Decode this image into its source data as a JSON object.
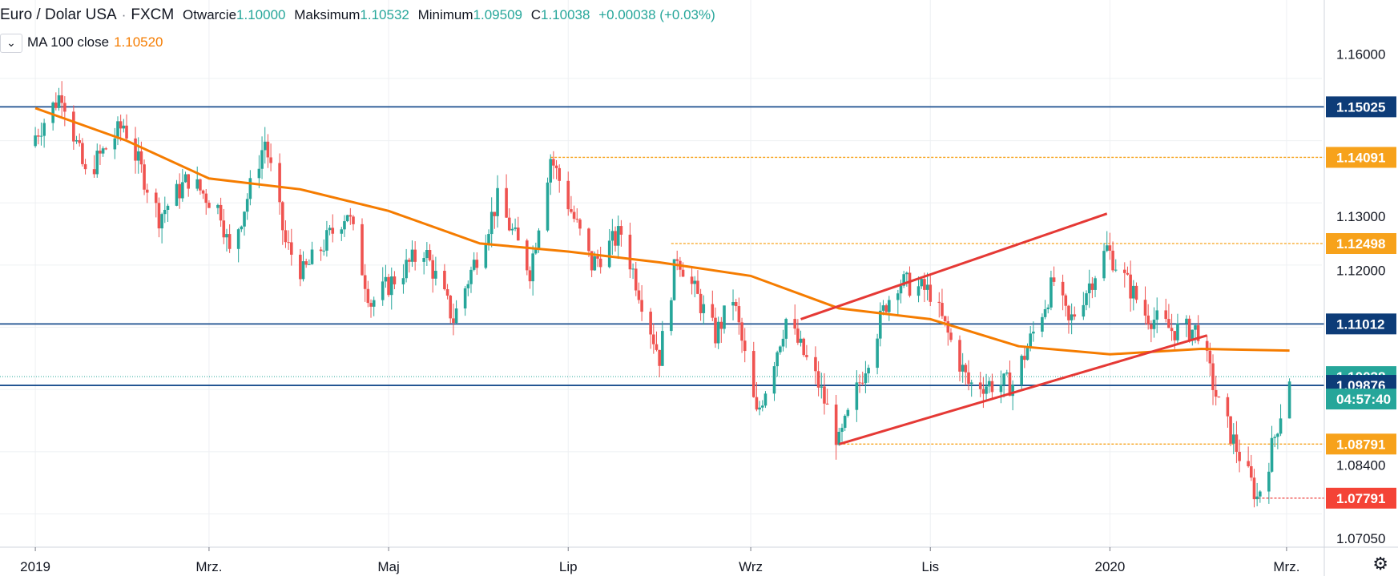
{
  "legend": {
    "symbol": "Euro / Dolar USA",
    "sep": "·",
    "exchange": "FXCM",
    "open_label": "Otwarcie",
    "open": "1.10000",
    "high_label": "Maksimum",
    "high": "1.10532",
    "low_label": "Minimum",
    "low": "1.09509",
    "close_label": "C",
    "close": "1.10038",
    "change": "+0.00038 (+0.03%)",
    "ma_toggle": "⌄",
    "ma_name": "MA 100 close",
    "ma_value": "1.10520"
  },
  "countdown": "04:57:40",
  "settings_icon": "gear-icon",
  "colors": {
    "up": "#26a69a",
    "down": "#ef5350",
    "ma": "#f57c00",
    "hline": "#1b4f8f",
    "trend": "#e53935",
    "level": "#f7a21b",
    "grid": "#eef0f3"
  },
  "chart_data": {
    "type": "candlestick",
    "symbol": "EUR/USD",
    "period": "2019-01 to 2020-03, daily",
    "x_ticks": [
      "2019",
      "Mrz.",
      "Maj",
      "Lip",
      "Wrz",
      "Lis",
      "2020",
      "Mrz."
    ],
    "x_tick_dates": [
      "2019-01-01",
      "2019-03-01",
      "2019-05-01",
      "2019-07-01",
      "2019-09-01",
      "2019-11-01",
      "2020-01-01",
      "2020-03-01"
    ],
    "y_ticks": [
      "1.16000",
      "1.13000",
      "1.12000",
      "1.08400",
      "1.07050"
    ],
    "y_tick_values": [
      1.16,
      1.13,
      1.12,
      1.084,
      1.0705
    ],
    "y_range": [
      1.069,
      1.17
    ],
    "x_range": [
      "2018-12-20",
      "2020-03-13"
    ],
    "price_labels": [
      {
        "text": "1.15025",
        "value": 1.15025,
        "kind": "hline"
      },
      {
        "text": "1.14091",
        "value": 1.14091,
        "kind": "level"
      },
      {
        "text": "1.12498",
        "value": 1.12498,
        "kind": "level"
      },
      {
        "text": "1.11012",
        "value": 1.11012,
        "kind": "hline"
      },
      {
        "text": "1.10038",
        "value": 1.10038,
        "kind": "last"
      },
      {
        "text": "1.09876",
        "value": 1.09876,
        "kind": "hline"
      },
      {
        "text": "1.08791",
        "value": 1.08791,
        "kind": "level"
      },
      {
        "text": "1.07791",
        "value": 1.07791,
        "kind": "low"
      }
    ],
    "horizontal_lines": [
      1.15025,
      1.11012,
      1.09876
    ],
    "level_lines": [
      {
        "value": 1.14091,
        "from": "2019-06-25"
      },
      {
        "value": 1.12498,
        "from": "2019-08-05"
      },
      {
        "value": 1.08791,
        "from": "2019-10-01"
      },
      {
        "value": 1.07791,
        "from": "2020-02-19"
      }
    ],
    "trend_lines": [
      {
        "from": [
          "2019-09-18",
          1.111
        ],
        "to": [
          "2019-12-31",
          1.1305
        ]
      },
      {
        "from": [
          "2019-10-01",
          1.0879
        ],
        "to": [
          "2020-02-03",
          1.108
        ]
      }
    ],
    "price_path": [
      [
        "2019-01-01",
        1.145
      ],
      [
        "2019-01-10",
        1.153
      ],
      [
        "2019-01-18",
        1.1375
      ],
      [
        "2019-01-31",
        1.147
      ],
      [
        "2019-02-12",
        1.13
      ],
      [
        "2019-02-22",
        1.137
      ],
      [
        "2019-03-05",
        1.131
      ],
      [
        "2019-03-08",
        1.123
      ],
      [
        "2019-03-20",
        1.144
      ],
      [
        "2019-03-27",
        1.125
      ],
      [
        "2019-04-02",
        1.1195
      ],
      [
        "2019-04-17",
        1.131
      ],
      [
        "2019-04-25",
        1.114
      ],
      [
        "2019-05-13",
        1.124
      ],
      [
        "2019-05-23",
        1.111
      ],
      [
        "2019-06-07",
        1.133
      ],
      [
        "2019-06-18",
        1.12
      ],
      [
        "2019-06-25",
        1.141
      ],
      [
        "2019-07-09",
        1.121
      ],
      [
        "2019-07-19",
        1.127
      ],
      [
        "2019-08-01",
        1.104
      ],
      [
        "2019-08-07",
        1.123
      ],
      [
        "2019-08-20",
        1.108
      ],
      [
        "2019-08-26",
        1.115
      ],
      [
        "2019-09-03",
        1.093
      ],
      [
        "2019-09-13",
        1.111
      ],
      [
        "2019-09-24",
        1.099
      ],
      [
        "2019-10-01",
        1.088
      ],
      [
        "2019-10-17",
        1.114
      ],
      [
        "2019-10-21",
        1.118
      ],
      [
        "2019-11-01",
        1.116
      ],
      [
        "2019-11-14",
        1.099
      ],
      [
        "2019-11-29",
        1.099
      ],
      [
        "2019-12-13",
        1.118
      ],
      [
        "2019-12-18",
        1.11
      ],
      [
        "2019-12-31",
        1.124
      ],
      [
        "2020-01-13",
        1.112
      ],
      [
        "2020-01-22",
        1.109
      ],
      [
        "2020-01-31",
        1.109
      ],
      [
        "2020-02-07",
        1.095
      ],
      [
        "2020-02-20",
        1.078
      ],
      [
        "2020-02-24",
        1.085
      ],
      [
        "2020-03-02",
        1.1004
      ]
    ],
    "ma100_path": [
      [
        "2019-01-01",
        1.15
      ],
      [
        "2019-02-01",
        1.144
      ],
      [
        "2019-03-01",
        1.137
      ],
      [
        "2019-04-01",
        1.135
      ],
      [
        "2019-05-01",
        1.131
      ],
      [
        "2019-06-01",
        1.125
      ],
      [
        "2019-07-01",
        1.1235
      ],
      [
        "2019-08-01",
        1.1215
      ],
      [
        "2019-09-01",
        1.119
      ],
      [
        "2019-10-01",
        1.113
      ],
      [
        "2019-11-01",
        1.111
      ],
      [
        "2019-12-01",
        1.106
      ],
      [
        "2020-01-01",
        1.1045
      ],
      [
        "2020-02-01",
        1.1055
      ],
      [
        "2020-03-02",
        1.1052
      ]
    ]
  }
}
